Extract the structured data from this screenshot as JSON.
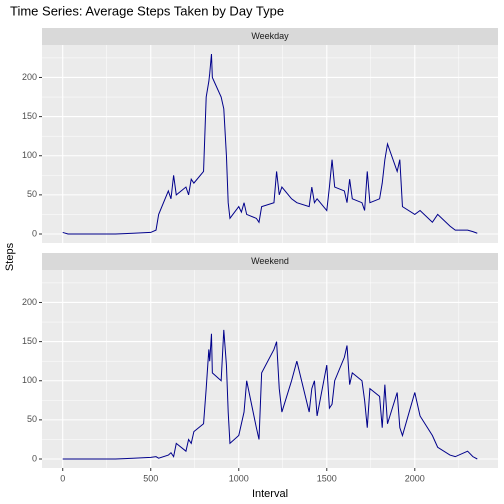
{
  "chart_data": {
    "type": "line",
    "facet": true,
    "title": "Time Series: Average Steps Taken by Day Type",
    "xlabel": "Interval",
    "ylabel": "Steps",
    "x": [
      0,
      30,
      100,
      200,
      300,
      400,
      500,
      530,
      545,
      600,
      615,
      630,
      645,
      700,
      715,
      730,
      745,
      800,
      815,
      830,
      835,
      845,
      850,
      900,
      915,
      930,
      940,
      950,
      1000,
      1015,
      1030,
      1045,
      1100,
      1115,
      1130,
      1200,
      1215,
      1230,
      1245,
      1300,
      1330,
      1400,
      1415,
      1430,
      1445,
      1500,
      1515,
      1530,
      1545,
      1600,
      1615,
      1630,
      1645,
      1700,
      1715,
      1730,
      1745,
      1800,
      1815,
      1830,
      1845,
      1900,
      1915,
      1930,
      2000,
      2030,
      2100,
      2130,
      2200,
      2230,
      2300,
      2330,
      2355
    ],
    "series": [
      {
        "name": "Weekday",
        "color": "#00008b",
        "values": [
          2,
          0,
          0,
          0,
          0,
          1,
          2,
          5,
          25,
          55,
          45,
          75,
          50,
          60,
          50,
          70,
          65,
          80,
          175,
          195,
          205,
          230,
          200,
          175,
          160,
          100,
          40,
          20,
          35,
          28,
          40,
          25,
          20,
          15,
          35,
          40,
          80,
          50,
          60,
          45,
          40,
          35,
          60,
          40,
          45,
          30,
          60,
          95,
          60,
          55,
          40,
          70,
          45,
          40,
          30,
          80,
          40,
          45,
          65,
          95,
          115,
          80,
          95,
          35,
          25,
          30,
          15,
          25,
          10,
          5,
          5,
          3,
          1
        ]
      },
      {
        "name": "Weekend",
        "color": "#00008b",
        "values": [
          0,
          0,
          0,
          0,
          0,
          1,
          2,
          3,
          1,
          5,
          8,
          3,
          20,
          10,
          25,
          20,
          35,
          45,
          90,
          140,
          125,
          160,
          110,
          100,
          165,
          120,
          60,
          20,
          30,
          45,
          60,
          100,
          40,
          25,
          110,
          140,
          150,
          90,
          60,
          100,
          125,
          60,
          90,
          100,
          55,
          120,
          65,
          70,
          100,
          130,
          145,
          95,
          110,
          100,
          75,
          40,
          90,
          80,
          40,
          95,
          45,
          85,
          40,
          30,
          85,
          55,
          30,
          15,
          5,
          3,
          10,
          3,
          0
        ]
      }
    ],
    "xlim": [
      -117.75,
      2472.75
    ],
    "ylim": [
      -11.5,
      241.5
    ],
    "xticks": [
      0,
      500,
      1000,
      1500,
      2000
    ],
    "yticks": [
      0,
      50,
      100,
      150,
      200
    ],
    "minor_xticks": [
      250,
      750,
      1250,
      1750,
      2250
    ],
    "minor_yticks": [
      25,
      75,
      125,
      175,
      225
    ],
    "grid": true
  }
}
